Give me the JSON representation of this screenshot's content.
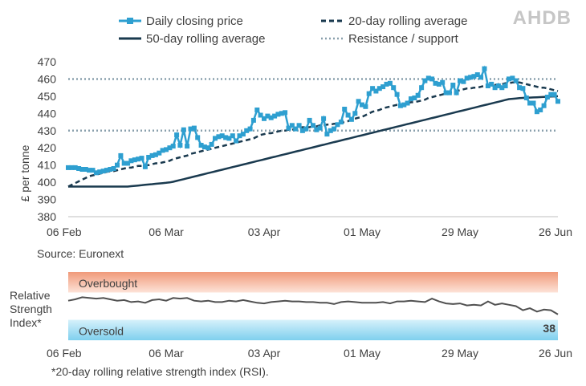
{
  "logo_text": "AHDB",
  "source": "Source: Euronext",
  "footnote": "*20-day rolling relative strength index (RSI).",
  "colors": {
    "daily": "#2e9fd0",
    "avg20": "#1a3a4f",
    "avg50": "#1a3a4f",
    "resistance": "#8aa0ad",
    "rsi_line": "#505050",
    "overbought": "#f09a7a",
    "oversold": "#7fd0ee",
    "axis": "#bfbfbf"
  },
  "chart_data": [
    {
      "type": "line",
      "title": "",
      "ylabel": "£ per tonne",
      "xlabel": "",
      "ylim": [
        380,
        470
      ],
      "yticks": [
        380,
        390,
        400,
        410,
        420,
        430,
        440,
        450,
        460,
        470
      ],
      "xticks": [
        "06 Feb",
        "06 Mar",
        "03 Apr",
        "01 May",
        "29 May",
        "26 Jun"
      ],
      "legend_placement": "top",
      "x_days": [
        0,
        1,
        2,
        3,
        4,
        5,
        6,
        7,
        8,
        9,
        10,
        11,
        12,
        13,
        14,
        15,
        16,
        17,
        18,
        19,
        20,
        21,
        22,
        23,
        24,
        25,
        26,
        27,
        28,
        29,
        30,
        31,
        32,
        33,
        34,
        35,
        36,
        37,
        38,
        39,
        40,
        41,
        42,
        43,
        44,
        45,
        46,
        47,
        48,
        49,
        50,
        51,
        52,
        53,
        54,
        55,
        56,
        57,
        58,
        59,
        60,
        61,
        62,
        63,
        64,
        65,
        66,
        67,
        68,
        69,
        70,
        71,
        72,
        73,
        74,
        75,
        76,
        77,
        78,
        79,
        80,
        81,
        82,
        83,
        84,
        85,
        86,
        87,
        88,
        89,
        90,
        91,
        92,
        93,
        94,
        95,
        96,
        97,
        98,
        99,
        100,
        101,
        102,
        103,
        104,
        105,
        106,
        107,
        108,
        109,
        110,
        111,
        112,
        113,
        114,
        115,
        116,
        117,
        118,
        119,
        120,
        121,
        122,
        123,
        124,
        125,
        126,
        127,
        128,
        129,
        130,
        131,
        132,
        133,
        134,
        135,
        136,
        137,
        138,
        139,
        140
      ],
      "series": [
        {
          "name": "Daily closing price",
          "style": "line-with-square-markers",
          "values": [
            408.5,
            408.5,
            408.5,
            408.0,
            407.5,
            407.5,
            407.0,
            407.0,
            405.5,
            406.0,
            406.5,
            407.0,
            407.5,
            408.0,
            410.0,
            415.5,
            411.0,
            411.0,
            412.5,
            413.0,
            413.5,
            414.0,
            409.0,
            414.5,
            415.5,
            416.0,
            417.0,
            418.5,
            419.0,
            420.0,
            421.0,
            427.5,
            421.5,
            430.5,
            421.0,
            431.0,
            431.5,
            426.0,
            421.5,
            420.5,
            420.0,
            422.0,
            425.5,
            426.5,
            427.0,
            426.0,
            425.5,
            427.0,
            424.0,
            427.0,
            428.0,
            430.0,
            431.0,
            436.0,
            442.0,
            439.0,
            437.0,
            438.5,
            437.5,
            438.5,
            439.5,
            440.0,
            440.5,
            431.5,
            433.0,
            431.0,
            433.0,
            430.0,
            431.0,
            436.0,
            433.0,
            430.5,
            431.5,
            437.0,
            428.0,
            430.0,
            431.0,
            433.5,
            435.0,
            442.5,
            439.0,
            436.5,
            440.0,
            447.0,
            445.0,
            444.0,
            451.5,
            454.5,
            453.0,
            454.5,
            455.5,
            457.0,
            457.5,
            455.0,
            451.0,
            444.5,
            445.0,
            446.0,
            448.5,
            449.0,
            450.5,
            455.0,
            459.0,
            460.5,
            460.0,
            457.5,
            457.0,
            458.0,
            452.0,
            452.0,
            456.5,
            452.0,
            459.0,
            458.5,
            460.5,
            461.0,
            461.5,
            462.5,
            461.0,
            466.0,
            456.0,
            457.0,
            455.0,
            456.0,
            455.0,
            456.0,
            460.0,
            460.5,
            459.0,
            455.0,
            454.5,
            449.0,
            446.0,
            446.0,
            441.0,
            442.0,
            444.5,
            449.5,
            451.0,
            451.0,
            447.0
          ]
        },
        {
          "name": "20-day rolling average",
          "style": "dashed",
          "values": [
            397.5,
            398.5,
            399.5,
            400.5,
            401.5,
            402.5,
            403.5,
            404.0,
            404.5,
            405.0,
            405.5,
            406.0,
            406.5,
            406.5,
            407.0,
            407.5,
            408.0,
            408.5,
            408.5,
            409.0,
            409.5,
            409.5,
            410.0,
            410.0,
            410.5,
            411.0,
            411.0,
            411.5,
            412.0,
            412.5,
            413.5,
            414.0,
            414.5,
            415.0,
            415.5,
            416.5,
            417.0,
            417.5,
            418.0,
            418.5,
            419.0,
            419.5,
            420.0,
            420.5,
            421.0,
            421.5,
            422.0,
            422.5,
            423.0,
            423.5,
            424.0,
            424.5,
            425.0,
            425.5,
            426.5,
            427.5,
            428.0,
            428.5,
            428.5,
            429.0,
            429.5,
            430.0,
            430.0,
            430.5,
            430.5,
            431.0,
            431.5,
            432.0,
            432.0,
            432.0,
            432.5,
            432.5,
            433.0,
            433.0,
            433.5,
            433.5,
            434.0,
            434.0,
            434.5,
            435.0,
            435.5,
            436.5,
            437.0,
            437.5,
            438.0,
            439.0,
            440.0,
            441.0,
            441.5,
            442.0,
            443.0,
            443.5,
            444.0,
            444.5,
            445.0,
            445.0,
            445.5,
            446.0,
            446.5,
            446.5,
            447.0,
            447.5,
            448.0,
            449.0,
            449.5,
            450.0,
            450.5,
            451.0,
            451.5,
            452.0,
            452.5,
            453.0,
            453.5,
            454.0,
            454.5,
            454.5,
            455.0,
            455.0,
            455.5,
            456.0,
            456.0,
            456.5,
            456.5,
            457.0,
            457.0,
            457.5,
            457.5,
            458.0,
            458.0,
            458.0,
            457.5,
            457.0,
            456.5,
            456.0,
            455.5,
            455.0,
            455.0,
            454.5,
            454.0,
            453.5,
            453.0
          ]
        },
        {
          "name": "50-day rolling average",
          "style": "solid",
          "values": [
            397.5,
            397.5,
            397.5,
            397.5,
            397.5,
            397.5,
            397.5,
            397.5,
            397.5,
            397.5,
            397.5,
            397.5,
            397.5,
            397.5,
            397.5,
            397.5,
            397.5,
            397.5,
            397.7,
            397.9,
            398.1,
            398.3,
            398.5,
            398.7,
            398.9,
            399.1,
            399.3,
            399.5,
            399.7,
            399.9,
            400.3,
            400.8,
            401.3,
            401.8,
            402.3,
            402.8,
            403.3,
            403.8,
            404.3,
            404.8,
            405.3,
            405.8,
            406.3,
            406.8,
            407.3,
            407.8,
            408.3,
            408.8,
            409.3,
            409.8,
            410.3,
            410.8,
            411.3,
            411.8,
            412.3,
            412.8,
            413.3,
            413.8,
            414.3,
            414.8,
            415.3,
            415.8,
            416.3,
            416.8,
            417.3,
            417.8,
            418.3,
            418.8,
            419.3,
            419.8,
            420.3,
            420.8,
            421.3,
            421.8,
            422.3,
            422.8,
            423.3,
            423.8,
            424.3,
            424.8,
            425.3,
            425.8,
            426.3,
            426.8,
            427.3,
            427.8,
            428.3,
            428.8,
            429.3,
            429.8,
            430.3,
            430.8,
            431.3,
            431.8,
            432.3,
            432.8,
            433.3,
            433.8,
            434.3,
            434.8,
            435.3,
            435.8,
            436.3,
            436.8,
            437.3,
            437.8,
            438.3,
            438.8,
            439.3,
            439.8,
            440.3,
            440.8,
            441.3,
            441.8,
            442.3,
            442.8,
            443.3,
            443.8,
            444.3,
            444.8,
            445.3,
            445.8,
            446.3,
            446.8,
            447.3,
            447.8,
            448.3,
            448.5,
            448.7,
            448.9,
            449.0,
            449.1,
            449.2,
            449.3,
            449.4,
            449.5,
            449.6,
            449.7,
            449.8,
            449.9,
            450.0
          ]
        },
        {
          "name": "Resistance / support",
          "style": "dotted-horizontal",
          "levels": [
            460,
            430
          ]
        }
      ]
    },
    {
      "type": "line",
      "title": "",
      "ylabel": "Relative Strength Index*",
      "xticks": [
        "06 Feb",
        "06 Mar",
        "03 Apr",
        "01 May",
        "29 May",
        "26 Jun"
      ],
      "bands": [
        {
          "label": "Overbought",
          "range": [
            70,
            100
          ]
        },
        {
          "label": "Oversold",
          "range": [
            0,
            30
          ]
        }
      ],
      "ylim": [
        0,
        100
      ],
      "last_value_label": "38",
      "x_days": [
        0,
        2,
        4,
        6,
        8,
        10,
        12,
        14,
        16,
        18,
        20,
        22,
        24,
        26,
        28,
        30,
        32,
        34,
        36,
        38,
        40,
        42,
        44,
        46,
        48,
        50,
        52,
        54,
        56,
        58,
        60,
        62,
        64,
        66,
        68,
        70,
        72,
        74,
        76,
        78,
        80,
        82,
        84,
        86,
        88,
        90,
        92,
        94,
        96,
        98,
        100,
        102,
        104,
        106,
        108,
        110,
        112,
        114,
        116,
        118,
        120,
        122,
        124,
        126,
        128,
        130,
        132,
        134,
        136,
        138,
        140
      ],
      "values": [
        58,
        60,
        63,
        62,
        61,
        62,
        60,
        58,
        59,
        56,
        57,
        55,
        59,
        60,
        58,
        62,
        61,
        62,
        58,
        57,
        58,
        56,
        56,
        58,
        57,
        59,
        57,
        55,
        54,
        56,
        57,
        58,
        57,
        57,
        56,
        56,
        55,
        55,
        53,
        56,
        57,
        56,
        55,
        55,
        55,
        56,
        54,
        57,
        57,
        58,
        57,
        56,
        61,
        57,
        54,
        53,
        54,
        51,
        52,
        51,
        57,
        52,
        54,
        52,
        50,
        44,
        47,
        42,
        45,
        44,
        38
      ]
    }
  ]
}
